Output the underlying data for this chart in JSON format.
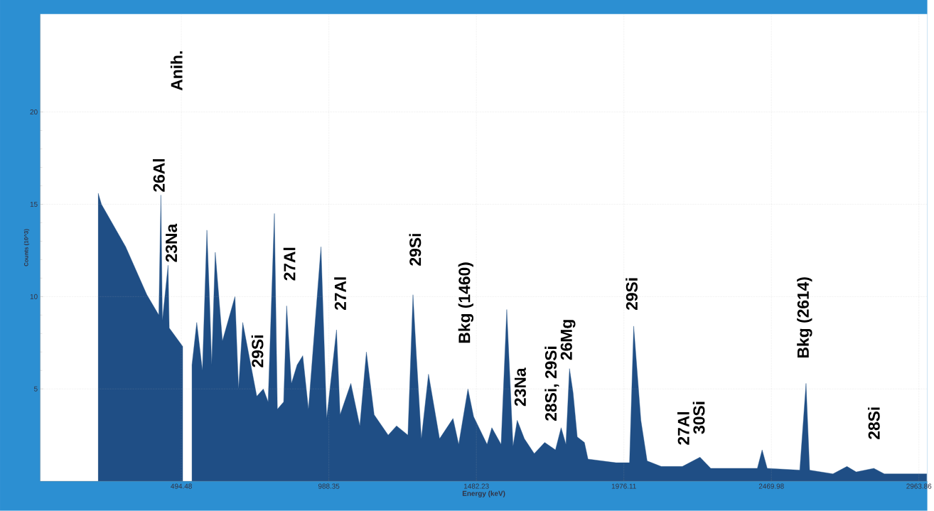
{
  "chart_data": {
    "type": "area",
    "xlabel": "Energy (keV)",
    "ylabel": "Counts (10^3)",
    "xlim": [
      22,
      2992
    ],
    "ylim": [
      0,
      25.3
    ],
    "xticks": [
      494.48,
      988.35,
      1482.23,
      1976.11,
      2469.98,
      2963.86
    ],
    "yticks": [
      5,
      10,
      15,
      20
    ],
    "grid": true,
    "x": [
      216,
      227,
      308,
      379,
      419,
      426,
      431,
      450,
      454,
      499,
      518,
      530,
      546,
      565,
      580,
      589,
      596,
      608,
      632,
      674,
      686,
      700,
      747,
      769,
      785,
      806,
      816,
      837,
      847,
      863,
      882,
      901,
      920,
      962,
      981,
      1014,
      1026,
      1062,
      1092,
      1114,
      1140,
      1187,
      1215,
      1253,
      1270,
      1281,
      1298,
      1322,
      1359,
      1404,
      1423,
      1454,
      1473,
      1518,
      1534,
      1565,
      1584,
      1605,
      1619,
      1643,
      1676,
      1711,
      1747,
      1766,
      1782,
      1794,
      1806,
      1820,
      1844,
      1856,
      1950,
      1995,
      2009,
      2033,
      2054,
      2101,
      2172,
      2231,
      2267,
      2328,
      2423,
      2439,
      2456,
      2565,
      2586,
      2598,
      2676,
      2723,
      2754,
      2813,
      2848,
      2990
    ],
    "series": [
      {
        "color": "#1f4e85",
        "values": [
          15.6,
          15.0,
          12.7,
          10.1,
          9.0,
          15.5,
          8.7,
          11.7,
          8.3,
          7.3,
          null,
          6.3,
          8.6,
          6.0,
          13.6,
          9.8,
          6.3,
          12.4,
          7.6,
          10.0,
          5.0,
          8.6,
          4.6,
          5.0,
          4.3,
          14.5,
          3.9,
          4.3,
          9.5,
          5.3,
          6.3,
          6.8,
          3.9,
          12.7,
          3.4,
          8.2,
          3.6,
          5.3,
          3.0,
          7.0,
          3.6,
          2.5,
          3.0,
          2.5,
          10.1,
          6.9,
          2.3,
          5.8,
          2.3,
          3.4,
          2.0,
          5.0,
          3.5,
          2.0,
          2.9,
          2.0,
          9.3,
          1.9,
          3.3,
          2.3,
          1.5,
          2.1,
          1.7,
          2.9,
          2.0,
          6.1,
          4.8,
          2.4,
          2.1,
          1.2,
          1.0,
          1.0,
          8.4,
          3.3,
          1.1,
          0.8,
          0.8,
          1.3,
          0.7,
          0.7,
          0.7,
          1.7,
          0.7,
          0.6,
          5.3,
          0.6,
          0.4,
          0.8,
          0.5,
          0.7,
          0.4,
          0.4
        ]
      }
    ],
    "annotations": [
      "26Al",
      "23Na",
      "Anih.",
      "29Si",
      "27Al",
      "27Al",
      "29Si",
      "Bkg (1460)",
      "23Na",
      "28Si, 29Si",
      "26Mg",
      "29Si",
      "27Al",
      "30Si",
      "Bkg (2614)",
      "28Si"
    ]
  }
}
